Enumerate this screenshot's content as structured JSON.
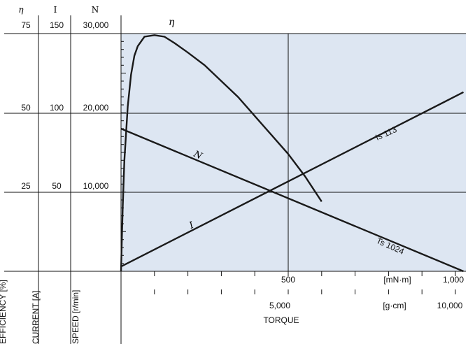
{
  "chart_data": {
    "type": "line",
    "title": "",
    "xlabel": "TORQUE",
    "x_axes": {
      "primary": {
        "unit": "[mN·m]",
        "range": [
          0,
          1000
        ],
        "tick_labels": [
          "500",
          "1,000"
        ]
      },
      "secondary": {
        "unit": "[g·cm]",
        "range": [
          0,
          10000
        ],
        "tick_labels": [
          "5,000",
          "10,000"
        ]
      }
    },
    "y_axes": [
      {
        "symbol": "η",
        "label": "EFFICIENCY [%]",
        "tick_labels": [
          "75",
          "50",
          "25"
        ],
        "range": [
          0,
          75
        ]
      },
      {
        "symbol": "I",
        "label": "CURRENT [A]",
        "tick_labels": [
          "150",
          "100",
          "50"
        ],
        "range": [
          0,
          150
        ]
      },
      {
        "symbol": "N",
        "label": "SPEED [r/min]",
        "tick_labels": [
          "30,000",
          "20,000",
          "10,000"
        ],
        "range": [
          0,
          30000
        ]
      }
    ],
    "series": [
      {
        "name": "η",
        "axis": "efficiency",
        "x": [
          0,
          5,
          10,
          20,
          30,
          40,
          50,
          70,
          100,
          130,
          160,
          200,
          250,
          300,
          350,
          400,
          450,
          500,
          550,
          600
        ],
        "values": [
          0,
          20,
          35,
          52,
          62,
          68,
          71,
          74,
          74.5,
          74,
          72,
          69,
          65,
          60,
          55,
          49,
          43,
          37,
          30,
          22
        ]
      },
      {
        "name": "I",
        "axis": "current",
        "x": [
          0,
          1024
        ],
        "values": [
          3,
          113
        ]
      },
      {
        "name": "N",
        "axis": "speed",
        "x": [
          0,
          1024
        ],
        "values": [
          18000,
          0
        ]
      }
    ],
    "annotations": [
      "Is 113",
      "Ts 1024"
    ],
    "grid": true,
    "legend": "none"
  }
}
